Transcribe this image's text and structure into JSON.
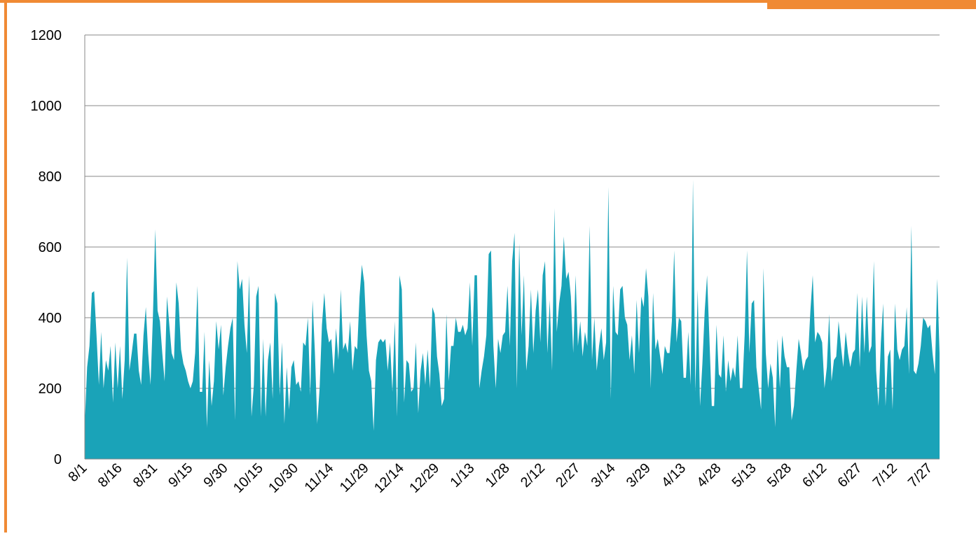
{
  "chart_data": {
    "type": "area",
    "color": "#1aa3b8",
    "grid": true,
    "ylim": [
      0,
      1200
    ],
    "yticks": [
      0,
      200,
      400,
      600,
      800,
      1000,
      1200
    ],
    "categories": [
      "8/1",
      null,
      null,
      null,
      null,
      null,
      null,
      null,
      null,
      null,
      null,
      null,
      null,
      null,
      null,
      "8/16",
      null,
      null,
      null,
      null,
      null,
      null,
      null,
      null,
      null,
      null,
      null,
      null,
      null,
      null,
      "8/31",
      null,
      null,
      null,
      null,
      null,
      null,
      null,
      null,
      null,
      null,
      null,
      null,
      null,
      null,
      "9/15",
      null,
      null,
      null,
      null,
      null,
      null,
      null,
      null,
      null,
      null,
      null,
      null,
      null,
      null,
      "9/30",
      null,
      null,
      null,
      null,
      null,
      null,
      null,
      null,
      null,
      null,
      null,
      null,
      null,
      null,
      "10/15",
      null,
      null,
      null,
      null,
      null,
      null,
      null,
      null,
      null,
      null,
      null,
      null,
      null,
      null,
      "10/30",
      null,
      null,
      null,
      null,
      null,
      null,
      null,
      null,
      null,
      null,
      null,
      null,
      null,
      null,
      "11/14",
      null,
      null,
      null,
      null,
      null,
      null,
      null,
      null,
      null,
      null,
      null,
      null,
      null,
      null,
      "11/29",
      null,
      null,
      null,
      null,
      null,
      null,
      null,
      null,
      null,
      null,
      null,
      null,
      null,
      null,
      "12/14",
      null,
      null,
      null,
      null,
      null,
      null,
      null,
      null,
      null,
      null,
      null,
      null,
      null,
      null,
      "12/29",
      null,
      null,
      null,
      null,
      null,
      null,
      null,
      null,
      null,
      null,
      null,
      null,
      null,
      null,
      "1/13",
      null,
      null,
      null,
      null,
      null,
      null,
      null,
      null,
      null,
      null,
      null,
      null,
      null,
      null,
      "1/28",
      null,
      null,
      null,
      null,
      null,
      null,
      null,
      null,
      null,
      null,
      null,
      null,
      null,
      null,
      "2/12",
      null,
      null,
      null,
      null,
      null,
      null,
      null,
      null,
      null,
      null,
      null,
      null,
      null,
      null,
      "2/27",
      null,
      null,
      null,
      null,
      null,
      null,
      null,
      null,
      null,
      null,
      null,
      null,
      null,
      null,
      "3/14",
      null,
      null,
      null,
      null,
      null,
      null,
      null,
      null,
      null,
      null,
      null,
      null,
      null,
      null,
      "3/29",
      null,
      null,
      null,
      null,
      null,
      null,
      null,
      null,
      null,
      null,
      null,
      null,
      null,
      null,
      "4/13",
      null,
      null,
      null,
      null,
      null,
      null,
      null,
      null,
      null,
      null,
      null,
      null,
      null,
      null,
      "4/28",
      null,
      null,
      null,
      null,
      null,
      null,
      null,
      null,
      null,
      null,
      null,
      null,
      null,
      null,
      "5/13",
      null,
      null,
      null,
      null,
      null,
      null,
      null,
      null,
      null,
      null,
      null,
      null,
      null,
      null,
      "5/28",
      null,
      null,
      null,
      null,
      null,
      null,
      null,
      null,
      null,
      null,
      null,
      null,
      null,
      null,
      "6/12",
      null,
      null,
      null,
      null,
      null,
      null,
      null,
      null,
      null,
      null,
      null,
      null,
      null,
      null,
      "6/27",
      null,
      null,
      null,
      null,
      null,
      null,
      null,
      null,
      null,
      null,
      null,
      null,
      null,
      null,
      "7/12",
      null,
      null,
      null,
      null,
      null,
      null,
      null,
      null,
      null,
      null,
      null,
      null,
      null,
      null,
      "7/27",
      null,
      null,
      null,
      null
    ],
    "values": [
      100,
      260,
      320,
      470,
      475,
      350,
      210,
      360,
      200,
      280,
      250,
      320,
      160,
      330,
      200,
      320,
      170,
      280,
      570,
      250,
      300,
      355,
      355,
      250,
      210,
      350,
      430,
      300,
      210,
      400,
      650,
      420,
      390,
      300,
      220,
      460,
      380,
      300,
      280,
      500,
      440,
      310,
      270,
      250,
      220,
      200,
      220,
      300,
      490,
      190,
      190,
      360,
      90,
      280,
      150,
      220,
      390,
      310,
      380,
      180,
      260,
      320,
      370,
      400,
      110,
      560,
      480,
      510,
      380,
      300,
      520,
      120,
      210,
      460,
      490,
      120,
      340,
      120,
      280,
      330,
      170,
      470,
      440,
      180,
      330,
      100,
      260,
      140,
      260,
      280,
      210,
      220,
      190,
      330,
      320,
      400,
      180,
      450,
      300,
      100,
      200,
      380,
      470,
      370,
      330,
      340,
      240,
      370,
      280,
      480,
      310,
      330,
      300,
      390,
      250,
      320,
      310,
      460,
      550,
      500,
      350,
      250,
      220,
      80,
      280,
      330,
      340,
      330,
      340,
      250,
      330,
      190,
      390,
      120,
      520,
      480,
      160,
      280,
      270,
      190,
      200,
      330,
      130,
      250,
      300,
      210,
      310,
      200,
      430,
      410,
      290,
      240,
      150,
      170,
      410,
      220,
      320,
      320,
      400,
      360,
      360,
      380,
      350,
      370,
      500,
      320,
      520,
      520,
      200,
      250,
      290,
      350,
      580,
      590,
      320,
      200,
      340,
      300,
      350,
      360,
      490,
      320,
      560,
      640,
      200,
      610,
      350,
      520,
      250,
      320,
      480,
      300,
      420,
      480,
      330,
      520,
      560,
      300,
      450,
      250,
      710,
      360,
      440,
      490,
      630,
      510,
      530,
      460,
      300,
      520,
      320,
      390,
      290,
      360,
      320,
      660,
      280,
      400,
      250,
      320,
      370,
      280,
      330,
      770,
      170,
      490,
      360,
      350,
      480,
      490,
      400,
      380,
      280,
      350,
      240,
      450,
      300,
      460,
      430,
      540,
      460,
      200,
      470,
      310,
      340,
      290,
      240,
      320,
      300,
      300,
      390,
      590,
      330,
      400,
      390,
      230,
      230,
      360,
      210,
      790,
      190,
      480,
      150,
      270,
      420,
      520,
      340,
      150,
      150,
      380,
      240,
      230,
      350,
      190,
      280,
      220,
      260,
      230,
      350,
      200,
      200,
      350,
      590,
      300,
      440,
      450,
      260,
      200,
      140,
      540,
      300,
      200,
      270,
      230,
      90,
      340,
      200,
      350,
      290,
      260,
      260,
      110,
      150,
      250,
      340,
      300,
      250,
      280,
      290,
      420,
      520,
      330,
      360,
      350,
      330,
      200,
      260,
      410,
      220,
      280,
      290,
      390,
      320,
      260,
      360,
      300,
      260,
      300,
      310,
      470,
      260,
      460,
      300,
      460,
      300,
      320,
      560,
      250,
      150,
      330,
      440,
      150,
      290,
      310,
      140,
      440,
      310,
      280,
      310,
      320,
      430,
      240,
      660,
      250,
      240,
      270,
      320,
      400,
      390,
      370,
      380,
      300,
      240,
      510,
      300
    ]
  }
}
